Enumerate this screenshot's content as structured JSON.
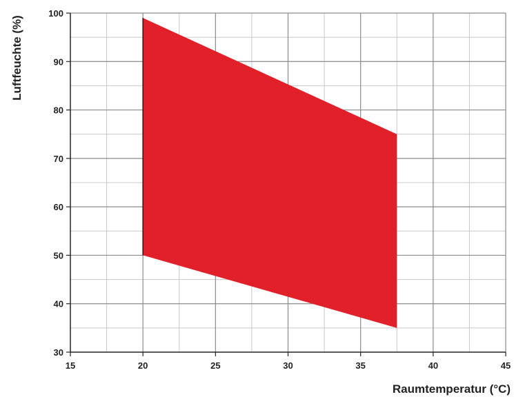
{
  "chart_data": {
    "type": "area",
    "title": "",
    "xlabel": "Raumtemperatur (°C)",
    "ylabel": "Luftfeuchte (%)",
    "xlim": [
      15,
      45
    ],
    "ylim": [
      30,
      100
    ],
    "x_ticks": [
      "15",
      "20",
      "25",
      "30",
      "35",
      "40",
      "45"
    ],
    "y_ticks": [
      "30",
      "40",
      "50",
      "60",
      "70",
      "80",
      "90",
      "100"
    ],
    "x_minor_step": 2.5,
    "y_minor_step": 5,
    "grid": true,
    "region": {
      "color": "#e2202a",
      "polygon": [
        [
          20,
          99
        ],
        [
          37.5,
          75
        ],
        [
          37.5,
          35
        ],
        [
          20,
          50
        ]
      ]
    }
  }
}
